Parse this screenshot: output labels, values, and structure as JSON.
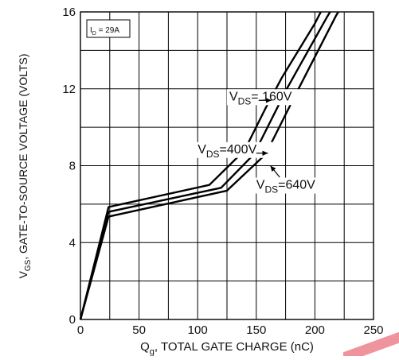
{
  "chart_data": {
    "type": "line",
    "xlabel": "Q , TOTAL GATE CHARGE (nC)",
    "xlabel_main": "Q",
    "xlabel_sub": "g",
    "xlabel_rest": ", TOTAL GATE CHARGE (nC)",
    "ylabel_main": "V",
    "ylabel_sub": "GS",
    "ylabel_rest": ", GATE-TO-SOURCE VOLTAGE (VOLTS)",
    "xlim": [
      0,
      250
    ],
    "ylim": [
      0,
      16
    ],
    "x_ticks": [
      0,
      50,
      100,
      150,
      200,
      250
    ],
    "x_tick_labels": [
      "0",
      "50",
      "100",
      "150",
      "200",
      "250"
    ],
    "y_ticks": [
      0,
      4,
      8,
      12,
      16
    ],
    "y_tick_labels": [
      "0",
      "4",
      "8",
      "12",
      "16"
    ],
    "x_grid_step": 25,
    "y_grid_step": 2,
    "grid": true,
    "condition_box": {
      "main": "I",
      "sub": "D",
      "rest": " = 29A"
    },
    "series": [
      {
        "name": "160V",
        "label_main": "V",
        "label_sub": "DS",
        "label_rest": "= 160V",
        "points": [
          [
            0,
            0
          ],
          [
            24,
            5.85
          ],
          [
            110,
            7.0
          ],
          [
            140,
            8.8
          ],
          [
            158,
            11.0
          ],
          [
            172,
            12.6
          ],
          [
            200,
            15.4
          ],
          [
            205,
            16
          ]
        ]
      },
      {
        "name": "400V",
        "label_main": "V",
        "label_sub": "DS",
        "label_rest": "=400V",
        "points": [
          [
            0,
            0
          ],
          [
            24,
            5.6
          ],
          [
            120,
            6.85
          ],
          [
            148,
            8.6
          ],
          [
            176,
            12.0
          ],
          [
            210,
            15.7
          ],
          [
            213,
            16
          ]
        ]
      },
      {
        "name": "640V",
        "label_main": "V",
        "label_sub": "DS",
        "label_rest": "=640V",
        "points": [
          [
            0,
            0
          ],
          [
            24,
            5.35
          ],
          [
            125,
            6.7
          ],
          [
            158,
            8.6
          ],
          [
            186,
            12.0
          ],
          [
            218,
            15.8
          ],
          [
            220,
            16
          ]
        ]
      }
    ],
    "annotations": [
      {
        "series": 0,
        "text_at": [
          127,
          11.4
        ],
        "arrow_from": [
          152,
          11.4
        ],
        "arrow_to": [
          163,
          11.4
        ]
      },
      {
        "series": 1,
        "text_at": [
          100,
          8.65
        ],
        "arrow_from": [
          150,
          8.65
        ],
        "arrow_to": [
          160,
          8.65
        ]
      },
      {
        "series": 2,
        "text_at": [
          150,
          6.8
        ],
        "arrow_from": [
          170,
          7.4
        ],
        "arrow_to": [
          162,
          8.0
        ]
      }
    ]
  }
}
